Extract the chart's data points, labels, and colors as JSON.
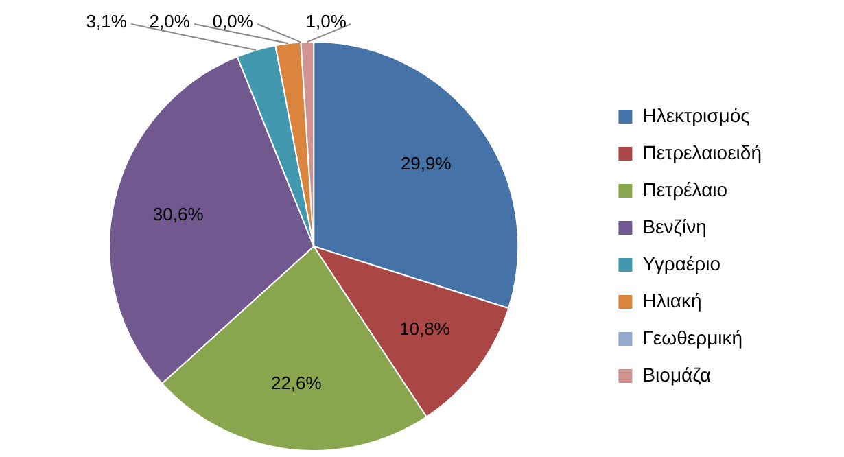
{
  "chart_data": {
    "type": "pie",
    "categories": [
      "Ηλεκτρισμός",
      "Πετρελαιοειδή",
      "Πετρέλαιο",
      "Βενζίνη",
      "Υγραέριο",
      "Ηλιακή",
      "Γεωθερμική",
      "Βιομάζα"
    ],
    "values": [
      29.9,
      10.8,
      22.6,
      30.6,
      3.1,
      2.0,
      0.0,
      1.0
    ],
    "value_labels": [
      "29,9%",
      "10,8%",
      "22,6%",
      "30,6%",
      "3,1%",
      "2,0%",
      "0,0%",
      "1,0%"
    ],
    "colors": [
      "#4572a7",
      "#aa4643",
      "#89a54e",
      "#71588f",
      "#4198af",
      "#db843d",
      "#93a9cf",
      "#d19392"
    ],
    "legend": "right"
  }
}
